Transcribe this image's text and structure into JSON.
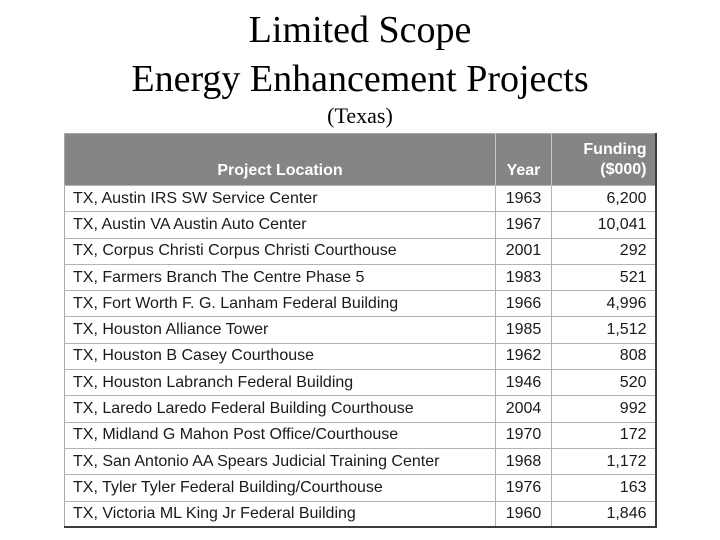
{
  "slide": {
    "title_line1": "Limited Scope",
    "title_line2": "Energy Enhancement Projects",
    "subtitle": "(Texas)"
  },
  "table": {
    "columns": [
      {
        "key": "location",
        "label": "Project Location"
      },
      {
        "key": "year",
        "label": "Year"
      },
      {
        "key": "funding",
        "label": "Funding\n($000)"
      }
    ],
    "rows": [
      {
        "location": "TX, Austin IRS SW Service Center",
        "year": "1963",
        "funding": "6,200"
      },
      {
        "location": "TX, Austin VA Austin Auto Center",
        "year": "1967",
        "funding": "10,041"
      },
      {
        "location": "TX, Corpus Christi Corpus Christi Courthouse",
        "year": "2001",
        "funding": "292"
      },
      {
        "location": "TX, Farmers Branch The Centre Phase 5",
        "year": "1983",
        "funding": "521"
      },
      {
        "location": "TX, Fort Worth F. G. Lanham Federal Building",
        "year": "1966",
        "funding": "4,996"
      },
      {
        "location": "TX, Houston Alliance Tower",
        "year": "1985",
        "funding": "1,512"
      },
      {
        "location": "TX, Houston B Casey Courthouse",
        "year": "1962",
        "funding": "808"
      },
      {
        "location": "TX, Houston Labranch Federal Building",
        "year": "1946",
        "funding": "520"
      },
      {
        "location": "TX, Laredo Laredo Federal Building Courthouse",
        "year": "2004",
        "funding": "992"
      },
      {
        "location": "TX, Midland G Mahon Post Office/Courthouse",
        "year": "1970",
        "funding": "172"
      },
      {
        "location": "TX, San Antonio AA Spears Judicial Training Center",
        "year": "1968",
        "funding": "1,172"
      },
      {
        "location": "TX, Tyler Tyler Federal Building/Courthouse",
        "year": "1976",
        "funding": "163"
      },
      {
        "location": "TX, Victoria ML King Jr Federal Building",
        "year": "1960",
        "funding": "1,846"
      }
    ]
  },
  "colors": {
    "header_bg": "#858585",
    "header_text": "#ffffff",
    "body_text": "#1a1a1a",
    "grid_line": "#b3b3b3",
    "outer_dark": "#3c3c3c",
    "outer_light": "#a8a8a8",
    "slide_bg": "#ffffff"
  }
}
